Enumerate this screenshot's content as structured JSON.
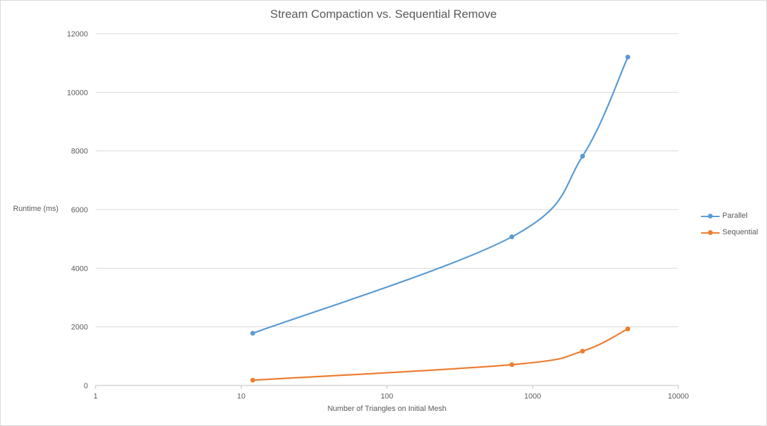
{
  "chart_data": {
    "type": "line",
    "title": "Stream Compaction vs. Sequential Remove",
    "xlabel": "Number  of Triangles on Initial Mesh",
    "ylabel": "Runtime (ms)",
    "xscale": "log",
    "xlim": [
      1,
      10000
    ],
    "ylim": [
      0,
      12000
    ],
    "xticks": [
      1,
      10,
      100,
      1000,
      10000
    ],
    "xtick_labels": [
      "1",
      "10",
      "100",
      "1000",
      "10000"
    ],
    "yticks": [
      0,
      2000,
      4000,
      6000,
      8000,
      10000,
      12000
    ],
    "ytick_labels": [
      "0",
      "2000",
      "4000",
      "6000",
      "8000",
      "10000",
      "12000"
    ],
    "grid": "horizontal",
    "legend_position": "right",
    "smooth": true,
    "series": [
      {
        "name": "Parallel",
        "color": "#5b9bd5",
        "x": [
          12,
          720,
          2200,
          4500
        ],
        "y": [
          1780,
          5070,
          7820,
          11200
        ]
      },
      {
        "name": "Sequential",
        "color": "#ed7d31",
        "x": [
          12,
          720,
          2200,
          4500
        ],
        "y": [
          180,
          710,
          1170,
          1930
        ]
      }
    ]
  }
}
